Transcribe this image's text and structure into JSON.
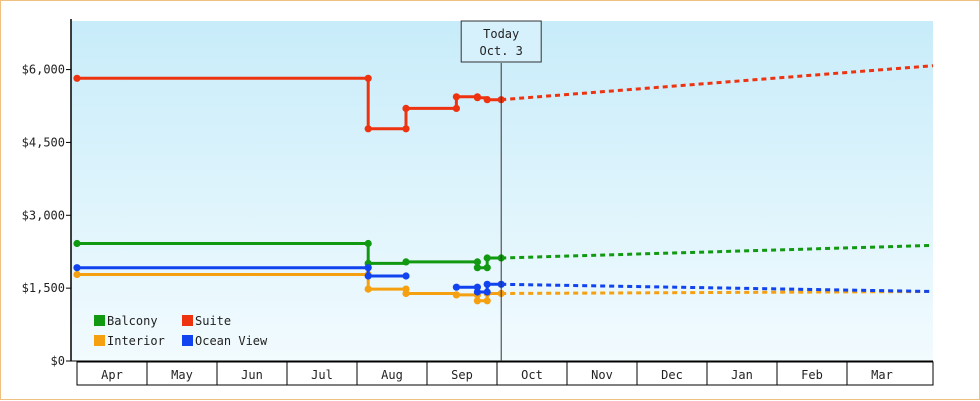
{
  "chart_data": {
    "type": "line",
    "title": "",
    "xlabel": "",
    "ylabel": "",
    "ylim": [
      0,
      7000
    ],
    "yticks": [
      0,
      1500,
      3000,
      4500,
      6000
    ],
    "ytick_labels": [
      "$0",
      "$1,500",
      "$3,000",
      "$4,500",
      "$6,000"
    ],
    "x_months": [
      "Apr",
      "May",
      "Jun",
      "Jul",
      "Aug",
      "Sep",
      "Oct",
      "Nov",
      "Dec",
      "Jan",
      "Feb",
      "Mar"
    ],
    "grid": false,
    "legend_position": "bottom-left",
    "today_marker": {
      "line1": "Today",
      "line2": "Oct. 3",
      "x": 6.06
    },
    "series": [
      {
        "name": "Balcony",
        "color": "#119911",
        "history": [
          [
            0.0,
            2420
          ],
          [
            4.16,
            2420
          ],
          [
            4.16,
            2010
          ],
          [
            4.7,
            2010
          ],
          [
            4.7,
            2040
          ],
          [
            5.72,
            2040
          ],
          [
            5.72,
            1920
          ],
          [
            5.86,
            1920
          ],
          [
            5.86,
            2120
          ],
          [
            6.06,
            2120
          ]
        ],
        "markers": [
          [
            0.0,
            2420
          ],
          [
            4.16,
            2420
          ],
          [
            4.16,
            2010
          ],
          [
            4.7,
            2040
          ],
          [
            5.72,
            2040
          ],
          [
            5.72,
            1920
          ],
          [
            5.86,
            1920
          ],
          [
            5.86,
            2120
          ],
          [
            6.06,
            2120
          ]
        ],
        "forecast": [
          [
            6.06,
            2120
          ],
          [
            12.3,
            2380
          ]
        ]
      },
      {
        "name": "Suite",
        "color": "#ee3311",
        "history": [
          [
            0.0,
            5820
          ],
          [
            4.16,
            5820
          ],
          [
            4.16,
            4780
          ],
          [
            4.7,
            4780
          ],
          [
            4.7,
            5200
          ],
          [
            5.42,
            5200
          ],
          [
            5.42,
            5440
          ],
          [
            5.72,
            5440
          ],
          [
            5.72,
            5420
          ],
          [
            5.86,
            5420
          ],
          [
            5.86,
            5380
          ],
          [
            6.06,
            5380
          ]
        ],
        "markers": [
          [
            0.0,
            5820
          ],
          [
            4.16,
            5820
          ],
          [
            4.16,
            4780
          ],
          [
            4.7,
            4780
          ],
          [
            4.7,
            5200
          ],
          [
            5.42,
            5200
          ],
          [
            5.42,
            5440
          ],
          [
            5.72,
            5440
          ],
          [
            5.72,
            5420
          ],
          [
            5.86,
            5380
          ],
          [
            6.06,
            5380
          ]
        ],
        "forecast": [
          [
            6.06,
            5380
          ],
          [
            12.3,
            6080
          ]
        ]
      },
      {
        "name": "Interior",
        "color": "#f5a010",
        "history": [
          [
            0.0,
            1780
          ],
          [
            4.16,
            1780
          ],
          [
            4.16,
            1480
          ],
          [
            4.7,
            1480
          ],
          [
            4.7,
            1390
          ],
          [
            5.42,
            1390
          ],
          [
            5.42,
            1360
          ],
          [
            5.72,
            1360
          ],
          [
            5.72,
            1240
          ],
          [
            5.86,
            1240
          ],
          [
            5.86,
            1390
          ],
          [
            6.06,
            1390
          ]
        ],
        "markers": [
          [
            0.0,
            1780
          ],
          [
            4.16,
            1780
          ],
          [
            4.16,
            1480
          ],
          [
            4.7,
            1480
          ],
          [
            4.7,
            1390
          ],
          [
            5.42,
            1360
          ],
          [
            5.72,
            1360
          ],
          [
            5.72,
            1240
          ],
          [
            5.86,
            1240
          ],
          [
            5.86,
            1390
          ],
          [
            6.06,
            1390
          ]
        ],
        "forecast": [
          [
            6.06,
            1390
          ],
          [
            12.3,
            1430
          ]
        ]
      },
      {
        "name": "Ocean View",
        "color": "#1144ee",
        "history": [
          [
            0.0,
            1920
          ],
          [
            4.16,
            1920
          ],
          [
            4.16,
            1750
          ],
          [
            4.7,
            1750
          ],
          [
            null,
            null
          ],
          [
            5.42,
            1520
          ],
          [
            5.72,
            1520
          ],
          [
            5.72,
            1420
          ],
          [
            5.86,
            1420
          ],
          [
            5.86,
            1580
          ],
          [
            6.06,
            1580
          ]
        ],
        "markers": [
          [
            0.0,
            1920
          ],
          [
            4.16,
            1920
          ],
          [
            4.16,
            1750
          ],
          [
            4.7,
            1750
          ],
          [
            5.42,
            1520
          ],
          [
            5.72,
            1520
          ],
          [
            5.72,
            1420
          ],
          [
            5.86,
            1420
          ],
          [
            5.86,
            1580
          ],
          [
            6.06,
            1580
          ]
        ],
        "forecast": [
          [
            6.06,
            1580
          ],
          [
            12.3,
            1430
          ]
        ]
      }
    ]
  }
}
